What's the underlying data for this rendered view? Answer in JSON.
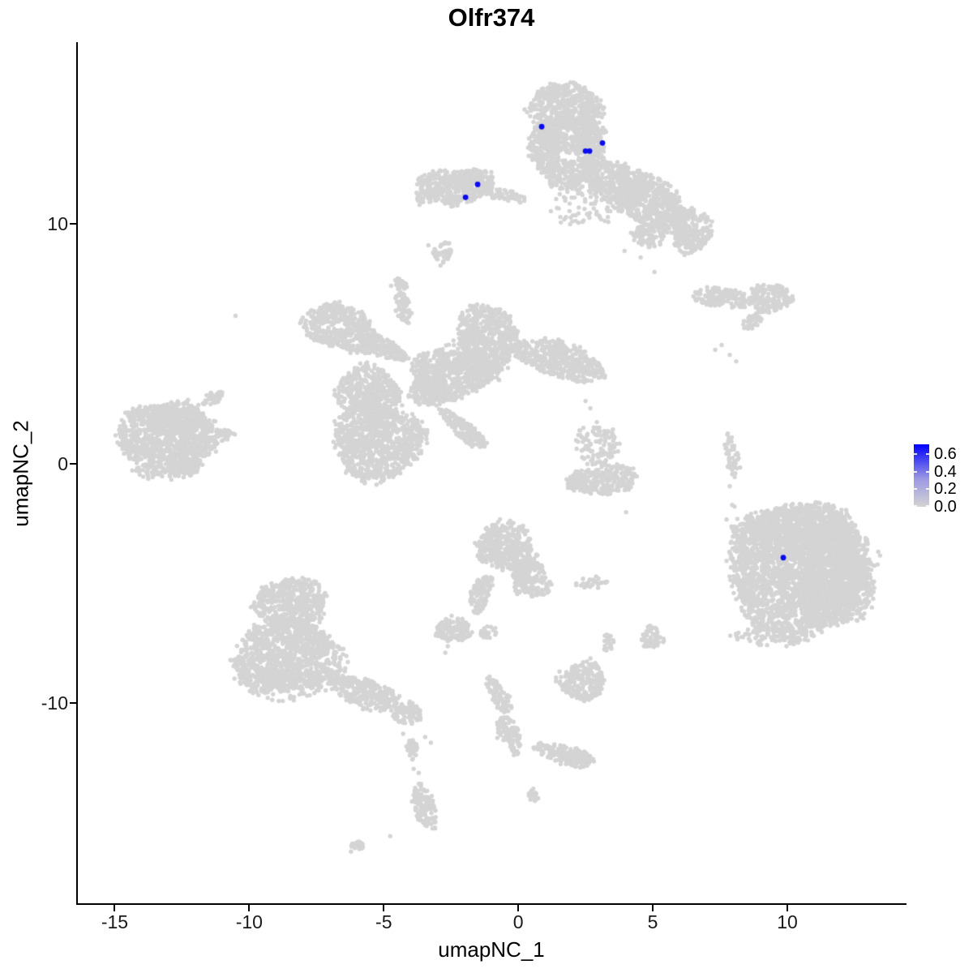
{
  "title": "Olfr374",
  "chart_data": {
    "type": "scatter",
    "title": "Olfr374",
    "xlabel": "umapNC_1",
    "ylabel": "umapNC_2",
    "xlim": [
      -16.4,
      14.4
    ],
    "ylim": [
      -18.4,
      17.6
    ],
    "x_ticks": [
      -15,
      -10,
      -5,
      0,
      5,
      10
    ],
    "y_ticks": [
      -10,
      0,
      10
    ],
    "grid": false,
    "legend_position": "right",
    "point_color_zero": "#D4D4D4",
    "point_color_expressed": "#0B0BF0",
    "point_radius_px": 2.7,
    "expressed_point_radius_px": 3.4,
    "expressed_points": [
      {
        "x": 0.87,
        "y": 14.07,
        "value": 0.65
      },
      {
        "x": 2.5,
        "y": 13.05,
        "value": 0.68
      },
      {
        "x": 2.65,
        "y": 13.05,
        "value": 0.64
      },
      {
        "x": 3.13,
        "y": 13.39,
        "value": 0.62
      },
      {
        "x": -1.51,
        "y": 11.66,
        "value": 0.6
      },
      {
        "x": -1.96,
        "y": 11.12,
        "value": 0.63
      },
      {
        "x": 9.85,
        "y": -3.93,
        "value": 0.66
      }
    ],
    "background_clusters": [
      [
        1.75,
        14.92,
        1.39,
        0.95,
        0,
        450
      ],
      [
        1.84,
        13.8,
        1.33,
        0.75,
        0,
        340
      ],
      [
        0.99,
        13.12,
        0.6,
        1.02,
        0,
        210
      ],
      [
        2.68,
        13.12,
        0.54,
        0.95,
        0,
        180
      ],
      [
        1.84,
        12.1,
        0.9,
        0.61,
        0,
        190
      ],
      [
        3.64,
        11.76,
        1.36,
        0.85,
        22,
        390
      ],
      [
        4.85,
        10.92,
        1.51,
        1.02,
        25,
        520
      ],
      [
        6.42,
        9.73,
        0.75,
        0.95,
        0,
        245
      ],
      [
        4.85,
        9.56,
        0.6,
        0.51,
        0,
        105
      ],
      [
        2.44,
        10.92,
        1.2,
        1.02,
        0,
        90
      ],
      [
        -2.38,
        11.53,
        1.36,
        0.75,
        0,
        350
      ],
      [
        -1.63,
        11.86,
        0.75,
        0.47,
        0,
        120
      ],
      [
        -0.42,
        11.19,
        0.75,
        0.24,
        10,
        60
      ],
      [
        -3.49,
        11.15,
        0.36,
        0.34,
        0,
        40
      ],
      [
        -2.83,
        8.85,
        0.36,
        0.41,
        0,
        50
      ],
      [
        7.56,
        6.92,
        1.14,
        0.41,
        5,
        160
      ],
      [
        9.37,
        6.92,
        0.81,
        0.61,
        0,
        170
      ],
      [
        8.7,
        5.93,
        0.42,
        0.27,
        -30,
        40
      ],
      [
        -6.6,
        5.66,
        1.45,
        0.95,
        18,
        470
      ],
      [
        -5.09,
        4.88,
        1.05,
        0.41,
        25,
        150
      ],
      [
        -4.28,
        6.51,
        0.3,
        0.68,
        -19,
        70
      ],
      [
        -4.43,
        7.46,
        0.3,
        0.24,
        0,
        25
      ],
      [
        -1.17,
        5.15,
        1.08,
        1.53,
        0,
        570
      ],
      [
        1.23,
        4.47,
        1.36,
        0.75,
        12,
        350
      ],
      [
        2.5,
        3.86,
        0.75,
        0.51,
        0,
        130
      ],
      [
        -2.53,
        3.73,
        1.51,
        1.02,
        0,
        520
      ],
      [
        -1.63,
        4.47,
        1.36,
        1.19,
        0,
        160
      ],
      [
        -5.54,
        3.05,
        1.2,
        1.02,
        10,
        420
      ],
      [
        -5.24,
        0.92,
        1.66,
        1.63,
        0,
        920
      ],
      [
        -2.02,
        1.42,
        1.11,
        0.34,
        40,
        170
      ],
      [
        -3.28,
        3.05,
        0.75,
        0.68,
        0,
        175
      ],
      [
        2.95,
        0.75,
        0.84,
        0.85,
        0,
        110
      ],
      [
        3.1,
        -0.68,
        1.36,
        0.61,
        -5,
        280
      ],
      [
        7.95,
        0.34,
        0.24,
        1.08,
        -12,
        55
      ],
      [
        10.42,
        -4.51,
        2.65,
        2.71,
        0,
        2400
      ],
      [
        10.57,
        -2.64,
        1.81,
        1.02,
        0,
        630
      ],
      [
        11.78,
        -5.02,
        1.36,
        1.86,
        0,
        860
      ],
      [
        8.46,
        -3.83,
        0.75,
        1.53,
        0,
        110
      ],
      [
        9.37,
        -7.12,
        1.36,
        0.51,
        0,
        70
      ],
      [
        -0.42,
        -3.49,
        1.14,
        1.02,
        20,
        400
      ],
      [
        0.48,
        -4.85,
        0.75,
        0.75,
        45,
        190
      ],
      [
        -1.39,
        -5.42,
        0.36,
        0.85,
        25,
        105
      ],
      [
        -2.38,
        -6.95,
        0.66,
        0.54,
        0,
        125
      ],
      [
        -1.11,
        -7.05,
        0.36,
        0.27,
        0,
        20
      ],
      [
        2.74,
        -4.95,
        0.66,
        0.27,
        0,
        25
      ],
      [
        4.94,
        -7.29,
        0.42,
        0.47,
        0,
        70
      ],
      [
        3.34,
        -7.46,
        0.21,
        0.41,
        0,
        25
      ],
      [
        2.38,
        -9.08,
        0.87,
        0.78,
        0,
        230
      ],
      [
        -0.72,
        -9.69,
        0.3,
        0.85,
        -30,
        90
      ],
      [
        -0.33,
        -11.29,
        0.36,
        0.85,
        -23,
        105
      ],
      [
        1.69,
        -12.14,
        1.05,
        0.41,
        15,
        150
      ],
      [
        2.44,
        -12.41,
        0.39,
        0.37,
        0,
        50
      ],
      [
        0.57,
        -13.86,
        0.21,
        0.31,
        0,
        22
      ],
      [
        -8.4,
        -5.86,
        1.36,
        1.08,
        0,
        500
      ],
      [
        -8.55,
        -8.07,
        2.05,
        1.53,
        0,
        1070
      ],
      [
        -8.7,
        -9.49,
        1.51,
        0.41,
        0,
        60
      ],
      [
        -5.69,
        -9.59,
        1.36,
        0.61,
        18,
        280
      ],
      [
        -4.13,
        -10.44,
        0.54,
        0.47,
        0,
        90
      ],
      [
        -3.95,
        -11.97,
        0.21,
        0.47,
        0,
        35
      ],
      [
        -3.49,
        -14.34,
        0.42,
        0.95,
        -17,
        135
      ],
      [
        -5.96,
        -15.97,
        0.33,
        0.2,
        -24,
        25
      ],
      [
        -13.07,
        0.92,
        1.87,
        1.53,
        0,
        970
      ],
      [
        -12.77,
        1.93,
        1.2,
        0.68,
        0,
        280
      ],
      [
        -11.36,
        2.71,
        0.42,
        0.27,
        -28,
        40
      ],
      [
        -10.96,
        1.19,
        0.42,
        0.24,
        0,
        35
      ],
      [
        -12.32,
        -0.17,
        0.54,
        0.34,
        0,
        65
      ]
    ],
    "background_singletons": [
      [
        -3.34,
        9.12
      ],
      [
        -2.89,
        8.27
      ],
      [
        -10.51,
        6.17
      ],
      [
        7.56,
        4.95
      ],
      [
        7.86,
        4.54
      ],
      [
        8.1,
        4.27
      ],
      [
        7.32,
        4.75
      ],
      [
        2.5,
        2.61
      ],
      [
        2.68,
        2.31
      ],
      [
        2.92,
        1.73
      ],
      [
        4.01,
        -2.03
      ],
      [
        7.86,
        -0.95
      ],
      [
        8.04,
        -1.8
      ],
      [
        7.74,
        -2.34
      ],
      [
        7.95,
        -1.73
      ],
      [
        8.7,
        -2.34
      ],
      [
        8.61,
        -2.75
      ],
      [
        9.28,
        -2.64
      ],
      [
        8.95,
        -3.19
      ],
      [
        -2.62,
        -7.63
      ],
      [
        -2.71,
        -7.9
      ],
      [
        2.68,
        -8.14
      ],
      [
        2.92,
        -8.44
      ],
      [
        -0.78,
        -11.46
      ],
      [
        -4.28,
        -11.29
      ],
      [
        -3.92,
        -11.56
      ],
      [
        -3.46,
        -11.42
      ],
      [
        -3.25,
        -11.66
      ],
      [
        -3.89,
        -12.75
      ],
      [
        -3.7,
        -12.92
      ],
      [
        -4.76,
        -15.56
      ],
      [
        -14.79,
        1.42
      ],
      [
        -14.67,
        0.68
      ],
      [
        5.06,
        8.0
      ],
      [
        3.95,
        8.88
      ],
      [
        4.55,
        8.61
      ]
    ]
  },
  "legend": {
    "tick_labels": [
      "0.6",
      "0.4",
      "0.2",
      "0.0"
    ],
    "tick_values": [
      0.6,
      0.4,
      0.2,
      0.0
    ],
    "scale_max": 0.71,
    "color_low": "#D3D3D3",
    "color_mid": "#9B98E2",
    "color_high": "#0000FF"
  }
}
